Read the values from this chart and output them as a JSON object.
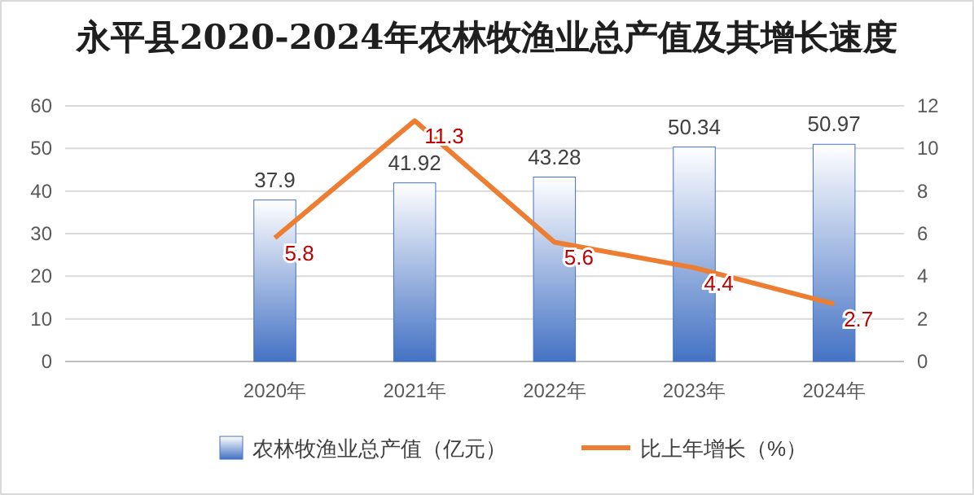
{
  "chart_data": {
    "type": "bar",
    "title": "永平县2020-2024年农林牧渔业总产值及其增长速度",
    "categories": [
      null,
      "2020年",
      "2021年",
      "2022年",
      "2023年",
      "2024年"
    ],
    "series": [
      {
        "name": "农林牧渔业总产值（亿元）",
        "color": "#4472c4",
        "values": [
          null,
          37.9,
          41.92,
          43.28,
          50.34,
          50.97
        ]
      },
      {
        "name": "比上年增长（%）",
        "type": "line",
        "axis": "y2",
        "color": "#ed7d31",
        "values": [
          null,
          5.8,
          11.3,
          5.6,
          4.4,
          2.7
        ]
      }
    ],
    "ylim": [
      0,
      60
    ],
    "yticks": [
      0,
      10,
      20,
      30,
      40,
      50,
      60
    ],
    "y2lim": [
      0,
      12
    ],
    "y2ticks": [
      0,
      2,
      4,
      6,
      8,
      10,
      12
    ],
    "grid": "y",
    "legend": "bottom",
    "data_labels": true
  }
}
